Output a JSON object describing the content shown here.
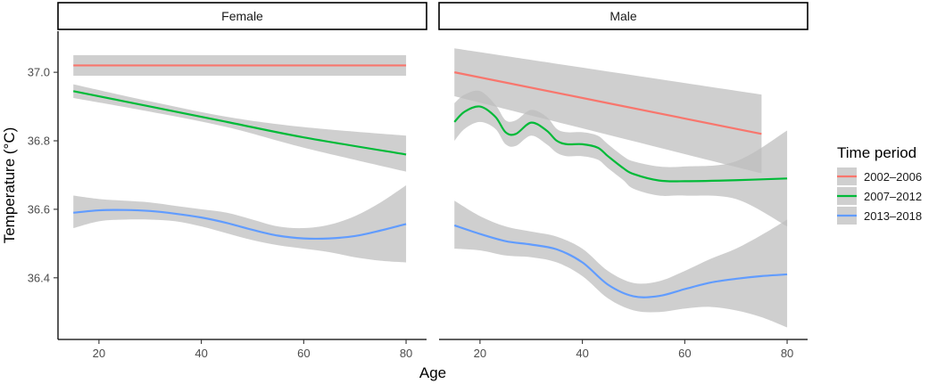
{
  "chart_data": {
    "type": "line",
    "xlabel": "Age",
    "ylabel": "Temperature (°C)",
    "xlim": [
      12,
      84
    ],
    "ylim": [
      36.22,
      37.12
    ],
    "xticks": [
      20,
      40,
      60,
      80
    ],
    "yticks": [
      36.4,
      36.6,
      36.8,
      37.0
    ],
    "ytick_labels": [
      "36.4",
      "36.6",
      "36.8",
      "37.0"
    ],
    "grid": false,
    "legend": {
      "title": "Time period",
      "position": "right",
      "entries": [
        "2002–2006",
        "2007–2012",
        "2013–2018"
      ]
    },
    "series_colors": {
      "2002–2006": "#f8766d",
      "2007–2012": "#00ba38",
      "2013–2018": "#619cff"
    },
    "band_color": "#bdbdbd",
    "panels": [
      {
        "label": "Female",
        "series": [
          {
            "name": "2002–2006",
            "x": [
              15,
              80
            ],
            "y": [
              37.02,
              37.02
            ],
            "lower": [
              36.99,
              36.99
            ],
            "upper": [
              37.05,
              37.05
            ]
          },
          {
            "name": "2007–2012",
            "x": [
              15,
              30,
              45,
              60,
              80
            ],
            "y": [
              36.945,
              36.9,
              36.855,
              36.81,
              36.76
            ],
            "lower": [
              36.925,
              36.885,
              36.84,
              36.78,
              36.71
            ],
            "upper": [
              36.965,
              36.915,
              36.87,
              36.84,
              36.815
            ]
          },
          {
            "name": "2013–2018",
            "x": [
              15,
              20,
              25,
              30,
              35,
              40,
              45,
              50,
              55,
              60,
              65,
              70,
              75,
              80
            ],
            "y": [
              36.59,
              36.597,
              36.598,
              36.595,
              36.587,
              36.576,
              36.56,
              36.54,
              36.523,
              36.515,
              36.515,
              36.522,
              36.538,
              36.557
            ],
            "lower": [
              36.545,
              36.565,
              36.57,
              36.57,
              36.565,
              36.55,
              36.53,
              36.51,
              36.495,
              36.485,
              36.475,
              36.46,
              36.45,
              36.445
            ],
            "upper": [
              36.64,
              36.63,
              36.625,
              36.62,
              36.61,
              36.6,
              36.59,
              36.57,
              36.55,
              36.545,
              36.555,
              36.58,
              36.62,
              36.67
            ]
          }
        ]
      },
      {
        "label": "Male",
        "series": [
          {
            "name": "2002–2006",
            "x": [
              15,
              75
            ],
            "y": [
              37.0,
              36.82
            ],
            "lower": [
              36.93,
              36.705
            ],
            "upper": [
              37.07,
              36.935
            ]
          },
          {
            "name": "2007–2012",
            "x": [
              15,
              17,
              20,
              23,
              25,
              27,
              30,
              33,
              35,
              37,
              40,
              43,
              45,
              48,
              50,
              55,
              60,
              70,
              80
            ],
            "y": [
              36.855,
              36.885,
              36.9,
              36.87,
              36.825,
              36.82,
              36.853,
              36.83,
              36.8,
              36.79,
              36.79,
              36.78,
              36.755,
              36.72,
              36.703,
              36.684,
              36.682,
              36.685,
              36.69
            ],
            "lower": [
              36.8,
              36.835,
              36.855,
              36.835,
              36.79,
              36.785,
              36.815,
              36.79,
              36.765,
              36.755,
              36.755,
              36.745,
              36.72,
              36.685,
              36.66,
              36.64,
              36.64,
              36.63,
              36.55
            ],
            "upper": [
              36.91,
              36.935,
              36.945,
              36.905,
              36.86,
              36.86,
              36.89,
              36.87,
              36.835,
              36.825,
              36.825,
              36.815,
              36.79,
              36.755,
              36.74,
              36.725,
              36.725,
              36.74,
              36.83
            ]
          },
          {
            "name": "2013–2018",
            "x": [
              15,
              20,
              25,
              30,
              35,
              40,
              45,
              50,
              55,
              60,
              65,
              70,
              75,
              80
            ],
            "y": [
              36.553,
              36.528,
              36.507,
              36.497,
              36.483,
              36.445,
              36.38,
              36.346,
              36.347,
              36.367,
              36.386,
              36.397,
              36.405,
              36.41
            ],
            "lower": [
              36.485,
              36.48,
              36.465,
              36.46,
              36.445,
              36.405,
              36.34,
              36.305,
              36.3,
              36.31,
              36.315,
              36.305,
              36.285,
              36.255
            ],
            "upper": [
              36.625,
              36.58,
              36.55,
              36.535,
              36.52,
              36.485,
              36.42,
              36.385,
              36.39,
              36.42,
              36.455,
              36.485,
              36.525,
              36.57
            ]
          }
        ]
      }
    ]
  }
}
